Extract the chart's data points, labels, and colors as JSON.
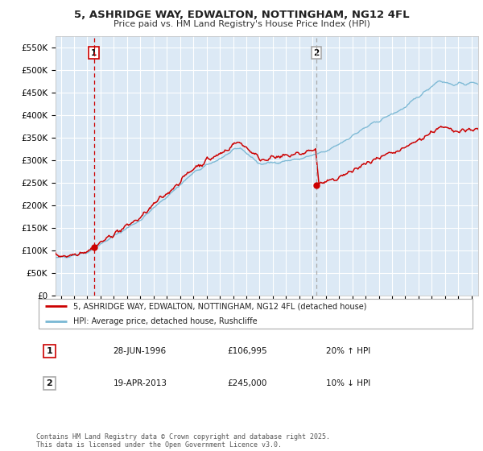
{
  "title": "5, ASHRIDGE WAY, EDWALTON, NOTTINGHAM, NG12 4FL",
  "subtitle": "Price paid vs. HM Land Registry's House Price Index (HPI)",
  "legend_line1": "5, ASHRIDGE WAY, EDWALTON, NOTTINGHAM, NG12 4FL (detached house)",
  "legend_line2": "HPI: Average price, detached house, Rushcliffe",
  "transaction1_date": "28-JUN-1996",
  "transaction1_price": "£106,995",
  "transaction1_hpi": "20% ↑ HPI",
  "transaction2_date": "19-APR-2013",
  "transaction2_price": "£245,000",
  "transaction2_hpi": "10% ↓ HPI",
  "footer": "Contains HM Land Registry data © Crown copyright and database right 2025.\nThis data is licensed under the Open Government Licence v3.0.",
  "ylim": [
    0,
    575000
  ],
  "yticks": [
    0,
    50000,
    100000,
    150000,
    200000,
    250000,
    300000,
    350000,
    400000,
    450000,
    500000,
    550000
  ],
  "ytick_labels": [
    "£0",
    "£50K",
    "£100K",
    "£150K",
    "£200K",
    "£250K",
    "£300K",
    "£350K",
    "£400K",
    "£450K",
    "£500K",
    "£550K"
  ],
  "point1_x": 1996.49,
  "point1_y": 106995,
  "point2_x": 2013.29,
  "point2_y": 245000,
  "plot_bg": "#dce9f5",
  "red_color": "#cc0000",
  "blue_color": "#7ab8d4",
  "vline1_color": "#cc0000",
  "vline2_color": "#aaaaaa",
  "xlim_left": 1993.6,
  "xlim_right": 2025.5
}
